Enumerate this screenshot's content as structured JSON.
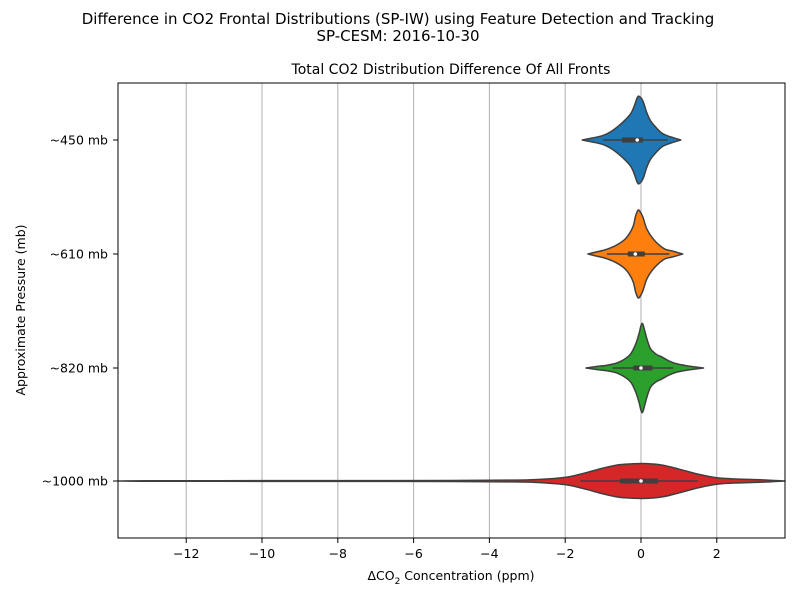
{
  "chart_data": {
    "type": "violin",
    "suptitle_line1": "Difference in CO2 Frontal Distributions (SP-IW) using Feature Detection and Tracking",
    "suptitle_line2": "SP-CESM: 2016-10-30",
    "title": "Total CO2 Distribution Difference Of All Fronts",
    "xlabel_prefix": "ΔCO",
    "xlabel_sub": "2",
    "xlabel_suffix": " Concentration (ppm)",
    "ylabel": "Approximate Pressure (mb)",
    "xlim": [
      -13.8,
      3.8
    ],
    "xticks": [
      -12,
      -10,
      -8,
      -6,
      -4,
      -2,
      0,
      2
    ],
    "xtick_labels": [
      "−12",
      "−10",
      "−8",
      "−6",
      "−4",
      "−2",
      "0",
      "2"
    ],
    "grid": "x",
    "categories": [
      "~450 mb",
      "~610 mb",
      "~820 mb",
      "~1000 mb"
    ],
    "series": [
      {
        "color": "#1f77b4",
        "min": -1.55,
        "max": 1.05,
        "q1": -0.5,
        "median": -0.1,
        "q3": 0.05,
        "whisker_low": -1.0,
        "whisker_high": 0.7,
        "density": [
          [
            -1.55,
            0.0
          ],
          [
            -1.3,
            0.04
          ],
          [
            -1.0,
            0.1
          ],
          [
            -0.8,
            0.18
          ],
          [
            -0.6,
            0.3
          ],
          [
            -0.4,
            0.45
          ],
          [
            -0.25,
            0.6
          ],
          [
            -0.15,
            0.8
          ],
          [
            -0.1,
            0.92
          ],
          [
            -0.05,
            0.95
          ],
          [
            0.05,
            0.85
          ],
          [
            0.15,
            0.6
          ],
          [
            0.25,
            0.42
          ],
          [
            0.4,
            0.27
          ],
          [
            0.55,
            0.15
          ],
          [
            0.7,
            0.09
          ],
          [
            0.85,
            0.05
          ],
          [
            1.05,
            0.0
          ]
        ]
      },
      {
        "color": "#ff7f0e",
        "min": -1.4,
        "max": 1.1,
        "q1": -0.35,
        "median": -0.15,
        "q3": 0.1,
        "whisker_low": -0.9,
        "whisker_high": 0.75,
        "density": [
          [
            -1.4,
            0.0
          ],
          [
            -1.2,
            0.04
          ],
          [
            -0.95,
            0.09
          ],
          [
            -0.7,
            0.17
          ],
          [
            -0.45,
            0.3
          ],
          [
            -0.3,
            0.45
          ],
          [
            -0.2,
            0.62
          ],
          [
            -0.15,
            0.8
          ],
          [
            -0.1,
            0.92
          ],
          [
            -0.05,
            0.95
          ],
          [
            0.05,
            0.8
          ],
          [
            0.15,
            0.55
          ],
          [
            0.3,
            0.35
          ],
          [
            0.5,
            0.18
          ],
          [
            0.65,
            0.1
          ],
          [
            0.85,
            0.06
          ],
          [
            1.1,
            0.0
          ]
        ]
      },
      {
        "color": "#2ca02c",
        "min": -1.45,
        "max": 1.65,
        "q1": -0.2,
        "median": 0.0,
        "q3": 0.3,
        "whisker_low": -0.75,
        "whisker_high": 0.85,
        "density": [
          [
            -1.45,
            0.0
          ],
          [
            -1.2,
            0.03
          ],
          [
            -0.9,
            0.06
          ],
          [
            -0.6,
            0.12
          ],
          [
            -0.3,
            0.28
          ],
          [
            -0.15,
            0.5
          ],
          [
            -0.05,
            0.75
          ],
          [
            0.0,
            0.92
          ],
          [
            0.05,
            0.95
          ],
          [
            0.15,
            0.65
          ],
          [
            0.25,
            0.42
          ],
          [
            0.4,
            0.3
          ],
          [
            0.55,
            0.24
          ],
          [
            0.7,
            0.17
          ],
          [
            0.9,
            0.1
          ],
          [
            1.2,
            0.05
          ],
          [
            1.65,
            0.0
          ]
        ]
      },
      {
        "color": "#d62728",
        "min": -13.8,
        "max": 3.8,
        "q1": -0.55,
        "median": 0.0,
        "q3": 0.45,
        "whisker_low": -1.6,
        "whisker_high": 1.5,
        "density": [
          [
            -13.8,
            0.0
          ],
          [
            -13.0,
            0.005
          ],
          [
            -10.0,
            0.007
          ],
          [
            -7.0,
            0.009
          ],
          [
            -5.0,
            0.012
          ],
          [
            -3.5,
            0.018
          ],
          [
            -2.8,
            0.03
          ],
          [
            -2.0,
            0.08
          ],
          [
            -1.5,
            0.17
          ],
          [
            -1.0,
            0.28
          ],
          [
            -0.6,
            0.35
          ],
          [
            -0.3,
            0.37
          ],
          [
            0.0,
            0.38
          ],
          [
            0.3,
            0.37
          ],
          [
            0.6,
            0.34
          ],
          [
            1.0,
            0.26
          ],
          [
            1.5,
            0.15
          ],
          [
            2.0,
            0.07
          ],
          [
            2.6,
            0.04
          ],
          [
            3.2,
            0.025
          ],
          [
            3.8,
            0.0
          ]
        ]
      }
    ]
  }
}
